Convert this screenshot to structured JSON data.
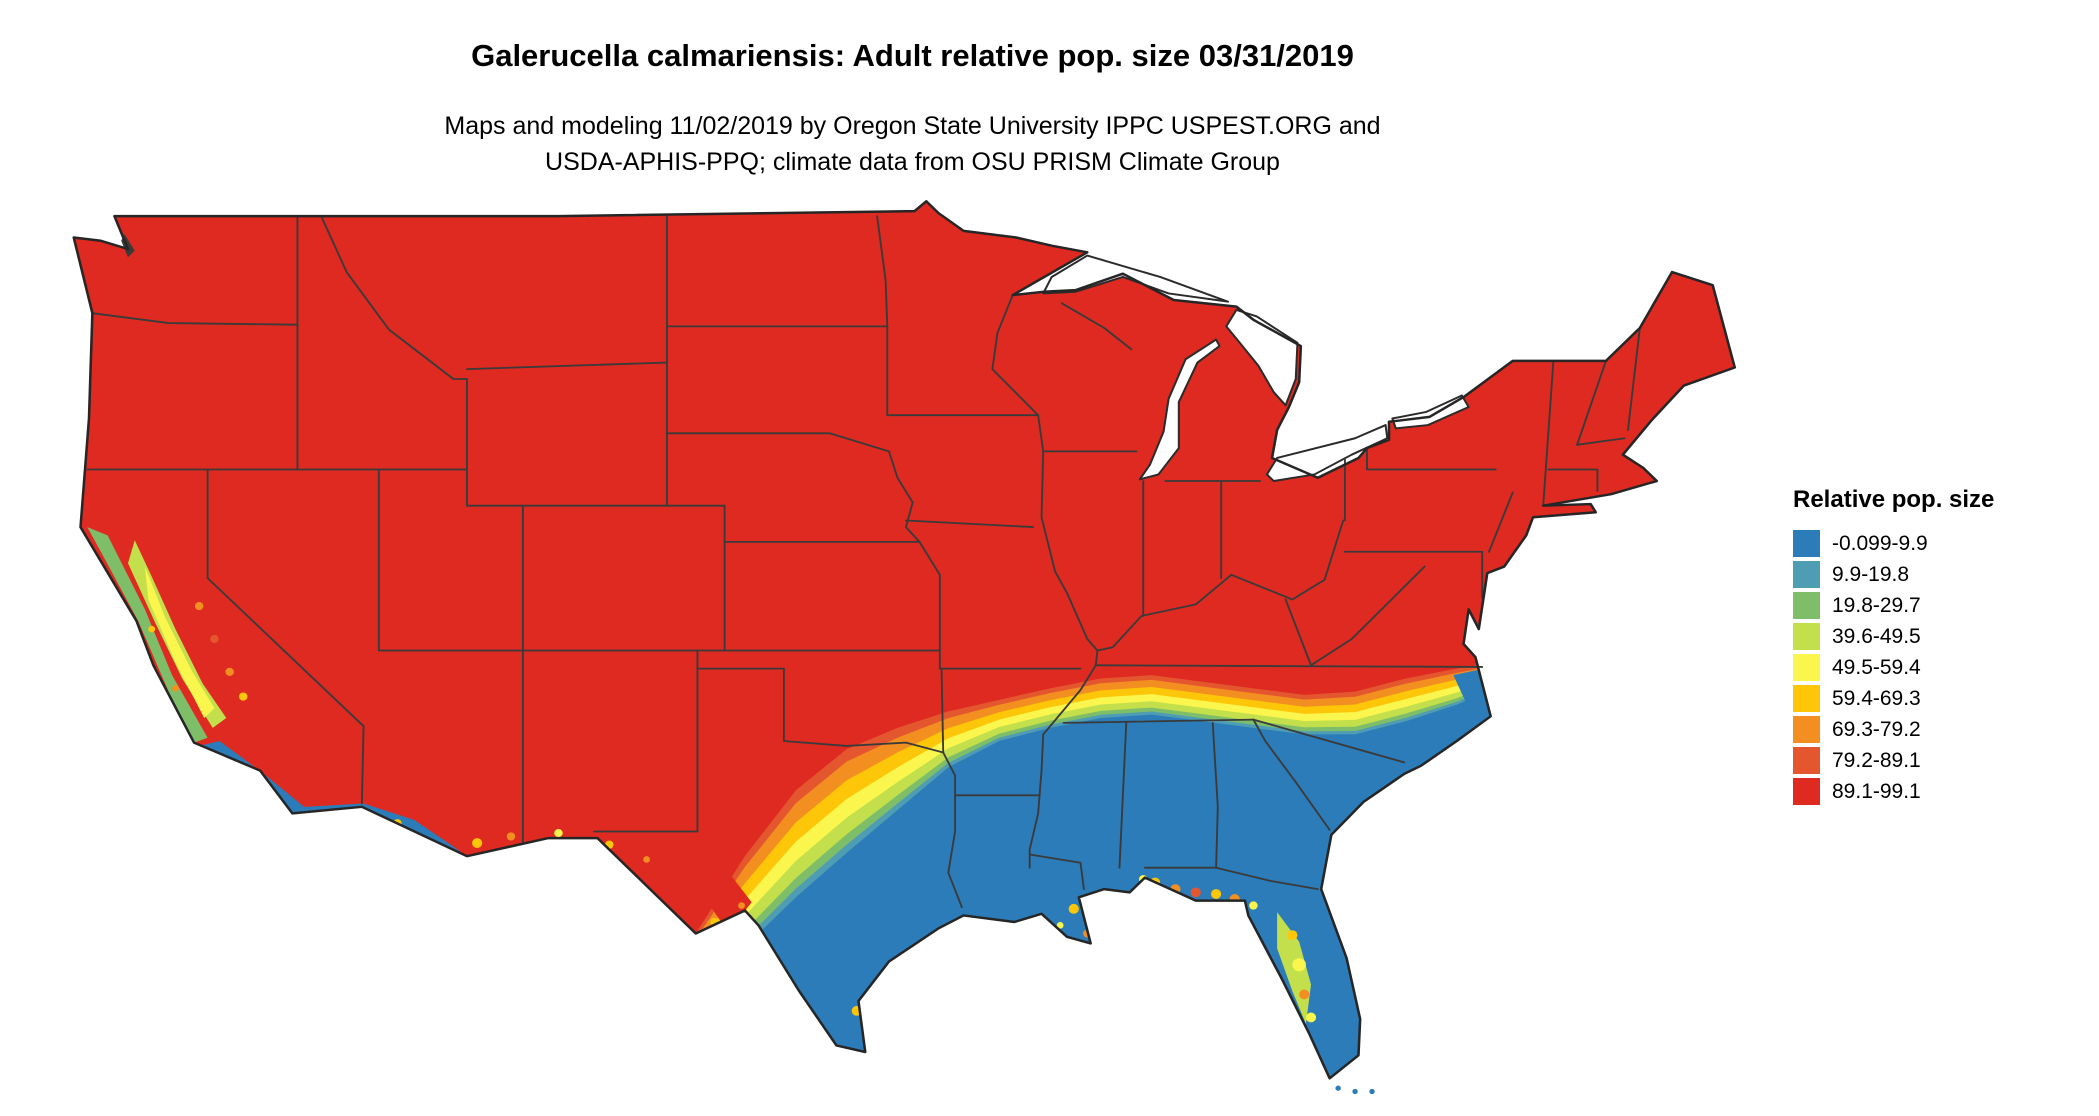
{
  "header": {
    "title": "Galerucella calmariensis: Adult relative pop. size 03/31/2019",
    "subtitle_line1": "Maps and modeling 11/02/2019 by Oregon State University IPPC USPEST.ORG and",
    "subtitle_line2": "USDA-APHIS-PPQ; climate data from OSU PRISM Climate Group"
  },
  "legend": {
    "title": "Relative pop. size",
    "items": [
      {
        "label": "-0.099-9.9",
        "color": "#2b7cb9"
      },
      {
        "label": "9.9-19.8",
        "color": "#4f9db3"
      },
      {
        "label": "19.8-29.7",
        "color": "#7fbe68"
      },
      {
        "label": "39.6-49.5",
        "color": "#c3e04c"
      },
      {
        "label": "49.5-59.4",
        "color": "#fbf64e"
      },
      {
        "label": "59.4-69.3",
        "color": "#fdc608"
      },
      {
        "label": "69.3-79.2",
        "color": "#f28f20"
      },
      {
        "label": "79.2-89.1",
        "color": "#e4572e"
      },
      {
        "label": "89.1-99.1",
        "color": "#de2a21"
      }
    ]
  },
  "chart_data": {
    "type": "heatmap",
    "subtype": "choropleth_map",
    "region": "contiguous United States",
    "title": "Galerucella calmariensis: Adult relative pop. size 03/31/2019",
    "legend_title": "Relative pop. size",
    "classes": [
      "-0.099-9.9",
      "9.9-19.8",
      "19.8-29.7",
      "39.6-49.5",
      "49.5-59.4",
      "59.4-69.3",
      "69.3-79.2",
      "79.2-89.1",
      "89.1-99.1"
    ],
    "class_colors": [
      "#2b7cb9",
      "#4f9db3",
      "#7fbe68",
      "#c3e04c",
      "#fbf64e",
      "#fdc608",
      "#f28f20",
      "#e4572e",
      "#de2a21"
    ],
    "spatial_pattern": {
      "89.1-99.1": "northern and central US: Pacific Northwest, Rockies, Great Plains, Midwest, Northeast, mid-Atlantic, interior Southwest",
      "transition_band_59-89": "east-west band across west Texas, Oklahoma border, northern Mississippi/Alabama, central Carolinas; also California Central Valley edges, Florida panhandle coast",
      "-0.099-9.9": "southern Texas, Gulf Coast states, Florida, southeastern coastal plain, coastal North Carolina, southern California coast, southwestern Arizona"
    }
  }
}
